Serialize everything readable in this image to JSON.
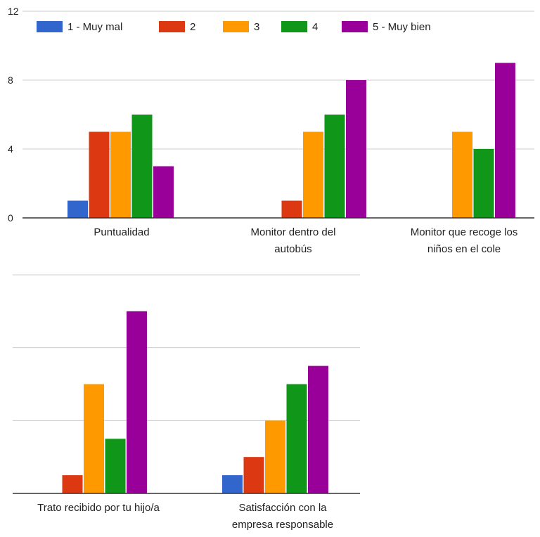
{
  "chart_data": {
    "type": "bar",
    "ylim": [
      0,
      12
    ],
    "yticks": [
      "0",
      "4",
      "8",
      "12"
    ],
    "grid": true,
    "legend_position": "top",
    "legend": [
      {
        "name": "1 - Muy mal",
        "color": "#3366cc"
      },
      {
        "name": "2",
        "color": "#dc3912"
      },
      {
        "name": "3",
        "color": "#ff9900"
      },
      {
        "name": "4",
        "color": "#109618"
      },
      {
        "name": "5 - Muy bien",
        "color": "#990099"
      }
    ],
    "categories": [
      {
        "label": [
          "Puntualidad"
        ],
        "values": [
          1,
          5,
          5,
          6,
          3
        ]
      },
      {
        "label": [
          "Monitor dentro del",
          "autobús"
        ],
        "values": [
          0,
          1,
          5,
          6,
          8
        ]
      },
      {
        "label": [
          "Monitor que recoge los",
          "niños en el cole"
        ],
        "values": [
          0,
          0,
          5,
          4,
          9
        ]
      },
      {
        "label": [
          "Trato recibido por tu hijo/a"
        ],
        "values": [
          0,
          1,
          6,
          3,
          10
        ]
      },
      {
        "label": [
          "Satisfacción con la",
          "empresa responsable"
        ],
        "values": [
          1,
          2,
          4,
          6,
          7
        ]
      }
    ]
  }
}
